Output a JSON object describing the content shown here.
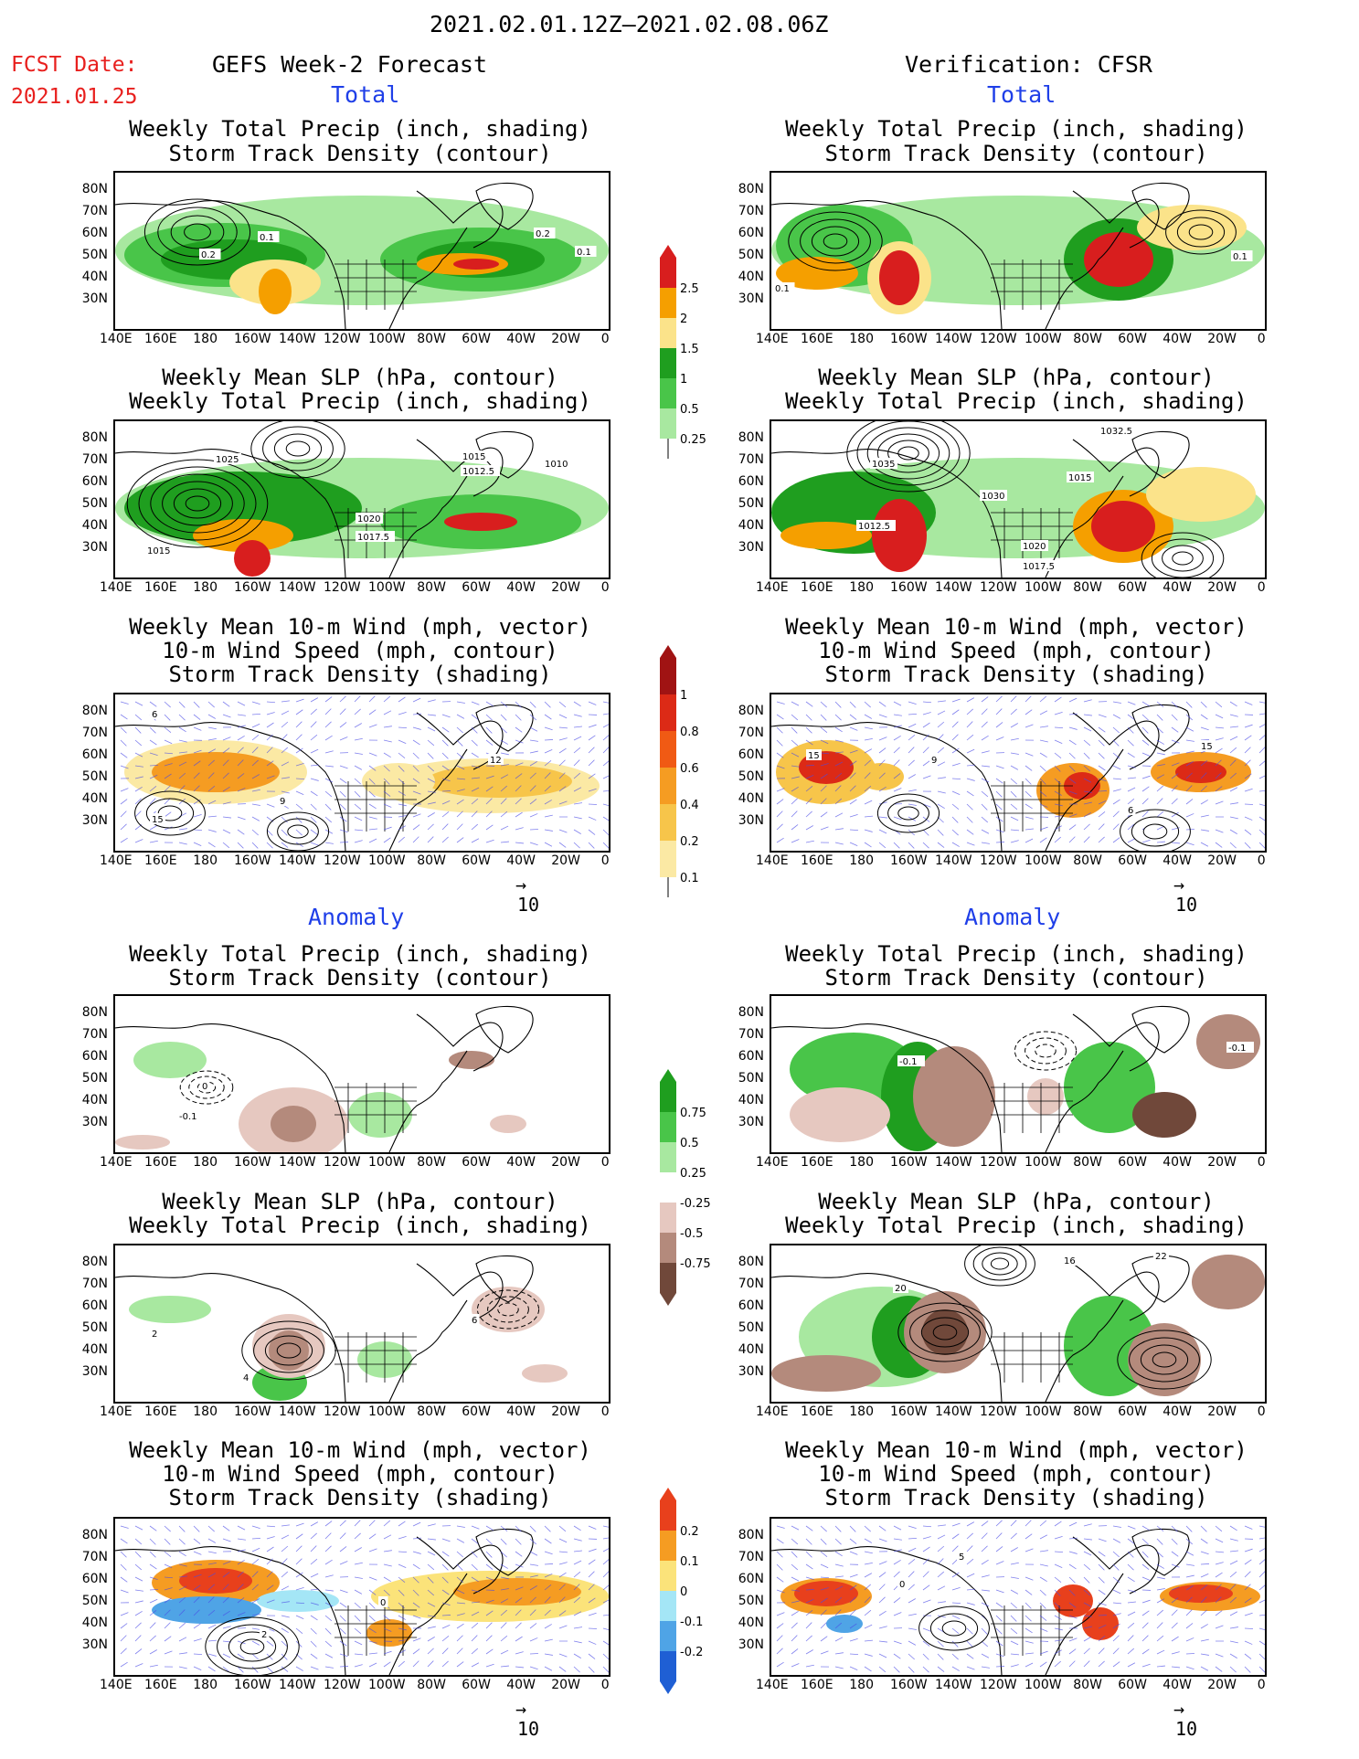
{
  "header": {
    "date_range": "2021.02.01.12Z–2021.02.08.06Z",
    "fcst_label": "FCST Date:",
    "fcst_date": "2021.01.25",
    "left_title": "GEFS Week-2 Forecast",
    "right_title": "Verification: CFSR"
  },
  "sections": {
    "total": "Total",
    "anomaly": "Anomaly"
  },
  "panel_titles": {
    "precip_storm": [
      "Weekly Total Precip (inch, shading)",
      "Storm Track Density (contour)"
    ],
    "slp_precip": [
      "Weekly Mean SLP (hPa, contour)",
      "Weekly Total Precip (inch, shading)"
    ],
    "wind_storm": [
      "Weekly Mean 10-m Wind (mph, vector)",
      "10-m Wind Speed (mph, contour)",
      "Storm Track Density (shading)"
    ]
  },
  "axes": {
    "lat_labels": [
      "80N",
      "70N",
      "60N",
      "50N",
      "40N",
      "30N"
    ],
    "lon_labels": [
      "140E",
      "160E",
      "180",
      "160W",
      "140W",
      "120W",
      "100W",
      "80W",
      "60W",
      "40W",
      "20W",
      "0"
    ]
  },
  "vector_ref": "10",
  "colorbars": {
    "precip_total": {
      "labels": [
        "2.5",
        "2",
        "1.5",
        "1",
        "0.5",
        "0.25"
      ],
      "colors": [
        "#d81e1e",
        "#f59f00",
        "#fbe38a",
        "#1f9e1f",
        "#49c549",
        "#a8e8a0"
      ]
    },
    "storm_total": {
      "labels": [
        "1",
        "0.8",
        "0.6",
        "0.4",
        "0.2",
        "0.1"
      ],
      "colors": [
        "#a01313",
        "#dc2a16",
        "#f05a14",
        "#f59c22",
        "#f7c54a",
        "#fbe9a4"
      ]
    },
    "precip_anom": {
      "labels": [
        "0.75",
        "0.5",
        "0.25",
        "-0.25",
        "-0.5",
        "-0.75"
      ],
      "colors": [
        "#1f9e1f",
        "#49c549",
        "#a8e8a0",
        "#e6c8c0",
        "#b48a7c",
        "#70483a"
      ]
    },
    "storm_anom": {
      "labels": [
        "0.2",
        "0.1",
        "0",
        "-0.1",
        "-0.2"
      ],
      "colors": [
        "#e8401c",
        "#f59c22",
        "#fbe37a",
        "#a4e6f6",
        "#4fa4e6",
        "#1f5fd4"
      ]
    }
  },
  "map_labels": {
    "fc_precip_total": [
      "0.2",
      "0.1",
      "0.2",
      "0.1"
    ],
    "vf_precip_total": [
      "0.1",
      "0.1"
    ],
    "fc_slp_total": [
      "1025",
      "1015",
      "1012.5",
      "1010",
      "1020",
      "1017.5",
      "1015"
    ],
    "vf_slp_total": [
      "1032.5",
      "1035",
      "1015",
      "1030",
      "1012.5",
      "1020",
      "1017.5"
    ],
    "fc_wind_total": [
      "6",
      "12",
      "15",
      "9"
    ],
    "vf_wind_total": [
      "15",
      "9",
      "6",
      "15"
    ],
    "fc_precip_anom": [
      "0",
      "-0.1"
    ],
    "vf_precip_anom": [
      "-0.1",
      "-0.1"
    ],
    "fc_slp_anom": [
      "2",
      "4",
      "6"
    ],
    "vf_slp_anom": [
      "22",
      "20",
      "16"
    ],
    "fc_wind_anom": [
      "2",
      "0"
    ],
    "vf_wind_anom": [
      "5",
      "0"
    ]
  }
}
